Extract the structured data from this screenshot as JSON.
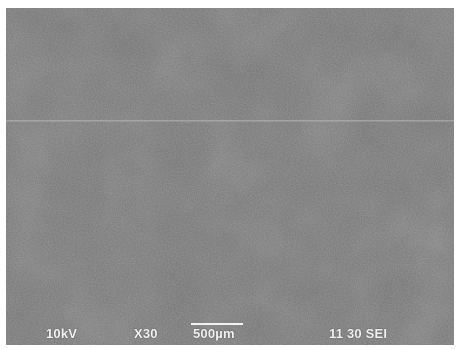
{
  "micrograph": {
    "base_color": "#6e6e6e",
    "accelerating_voltage": "10kV",
    "magnification": "X30",
    "scale_bar_label": "500µm",
    "image_id": "11 30 SEI"
  }
}
